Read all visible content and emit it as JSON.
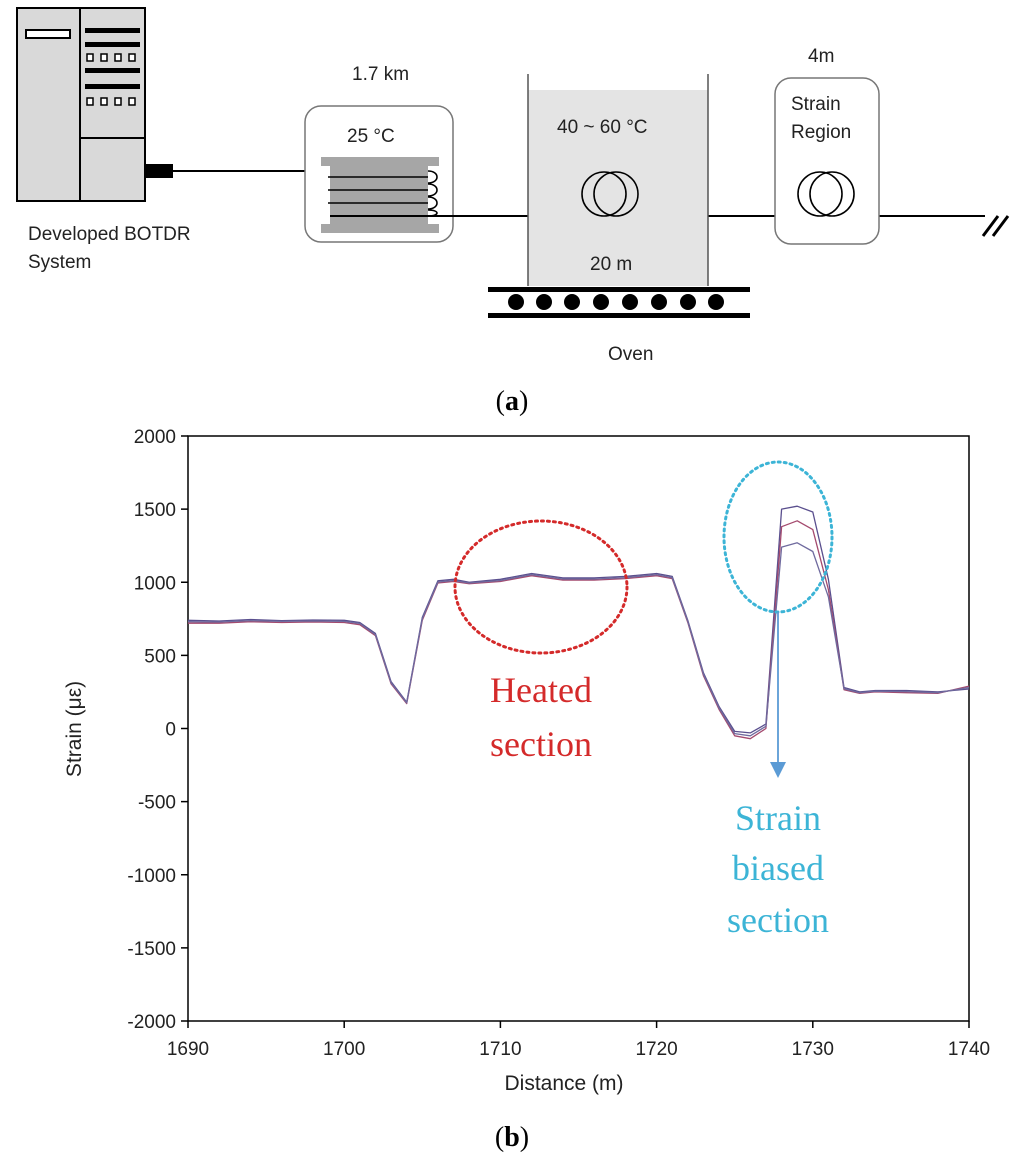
{
  "diagram": {
    "system_label_line1": "Developed BOTDR",
    "system_label_line2": "System",
    "spool_length": "1.7 km",
    "spool_temp": "25 °C",
    "oven_temp": "40 ~ 60 °C",
    "oven_length": "20 m",
    "oven_label": "Oven",
    "strain_length": "4m",
    "strain_label_line1": "Strain",
    "strain_label_line2": "Region",
    "panel_label": "a"
  },
  "chart_data": {
    "type": "line",
    "xlabel": "Distance (m)",
    "ylabel": "Strain (με)",
    "xlim": [
      1690,
      1740
    ],
    "ylim": [
      -2000,
      2000
    ],
    "xticks": [
      1690,
      1700,
      1710,
      1720,
      1730,
      1740
    ],
    "yticks": [
      -2000,
      -1500,
      -1000,
      -500,
      0,
      500,
      1000,
      1500,
      2000
    ],
    "grid": false,
    "panel_label": "b",
    "annotations": {
      "heated": {
        "line1": "Heated",
        "line2": "section",
        "color": "#d42a2a"
      },
      "strain": {
        "line1": "Strain",
        "line2": "biased",
        "line3": "section",
        "color": "#3cb4d6"
      }
    },
    "series": [
      {
        "color": "#5a4f8e",
        "x": [
          1690,
          1692,
          1694,
          1696,
          1698,
          1700,
          1701,
          1702,
          1703,
          1704,
          1705,
          1706,
          1707,
          1708,
          1710,
          1712,
          1714,
          1716,
          1718,
          1720,
          1721,
          1722,
          1723,
          1724,
          1725,
          1726,
          1727,
          1728,
          1729,
          1730,
          1731,
          1732,
          1733,
          1734,
          1736,
          1738,
          1740
        ],
        "y": [
          740,
          735,
          745,
          738,
          742,
          740,
          725,
          650,
          320,
          180,
          760,
          1010,
          1020,
          1000,
          1020,
          1060,
          1030,
          1030,
          1040,
          1060,
          1040,
          740,
          380,
          150,
          -20,
          -30,
          30,
          1500,
          1520,
          1480,
          1020,
          280,
          250,
          260,
          260,
          250,
          270
        ]
      },
      {
        "color": "#a44a6e",
        "x": [
          1690,
          1692,
          1694,
          1696,
          1698,
          1700,
          1701,
          1702,
          1703,
          1704,
          1705,
          1706,
          1707,
          1708,
          1710,
          1712,
          1714,
          1716,
          1718,
          1720,
          1721,
          1722,
          1723,
          1724,
          1725,
          1726,
          1727,
          1728,
          1729,
          1730,
          1731,
          1732,
          1733,
          1734,
          1736,
          1738,
          1740
        ],
        "y": [
          720,
          720,
          730,
          725,
          728,
          725,
          710,
          635,
          305,
          170,
          740,
          995,
          1005,
          990,
          1005,
          1045,
          1015,
          1015,
          1025,
          1045,
          1025,
          725,
          360,
          130,
          -50,
          -70,
          0,
          1380,
          1420,
          1360,
          950,
          265,
          240,
          250,
          245,
          240,
          290
        ]
      },
      {
        "color": "#6f6a9e",
        "x": [
          1690,
          1692,
          1694,
          1696,
          1698,
          1700,
          1701,
          1702,
          1703,
          1704,
          1705,
          1706,
          1707,
          1708,
          1710,
          1712,
          1714,
          1716,
          1718,
          1720,
          1721,
          1722,
          1723,
          1724,
          1725,
          1726,
          1727,
          1728,
          1729,
          1730,
          1731,
          1732,
          1733,
          1734,
          1736,
          1738,
          1740
        ],
        "y": [
          730,
          728,
          738,
          732,
          735,
          732,
          718,
          642,
          312,
          175,
          750,
          1002,
          1012,
          995,
          1012,
          1052,
          1022,
          1022,
          1032,
          1052,
          1032,
          732,
          370,
          140,
          -35,
          -50,
          15,
          1240,
          1270,
          1210,
          900,
          272,
          245,
          255,
          252,
          245,
          280
        ]
      }
    ]
  }
}
